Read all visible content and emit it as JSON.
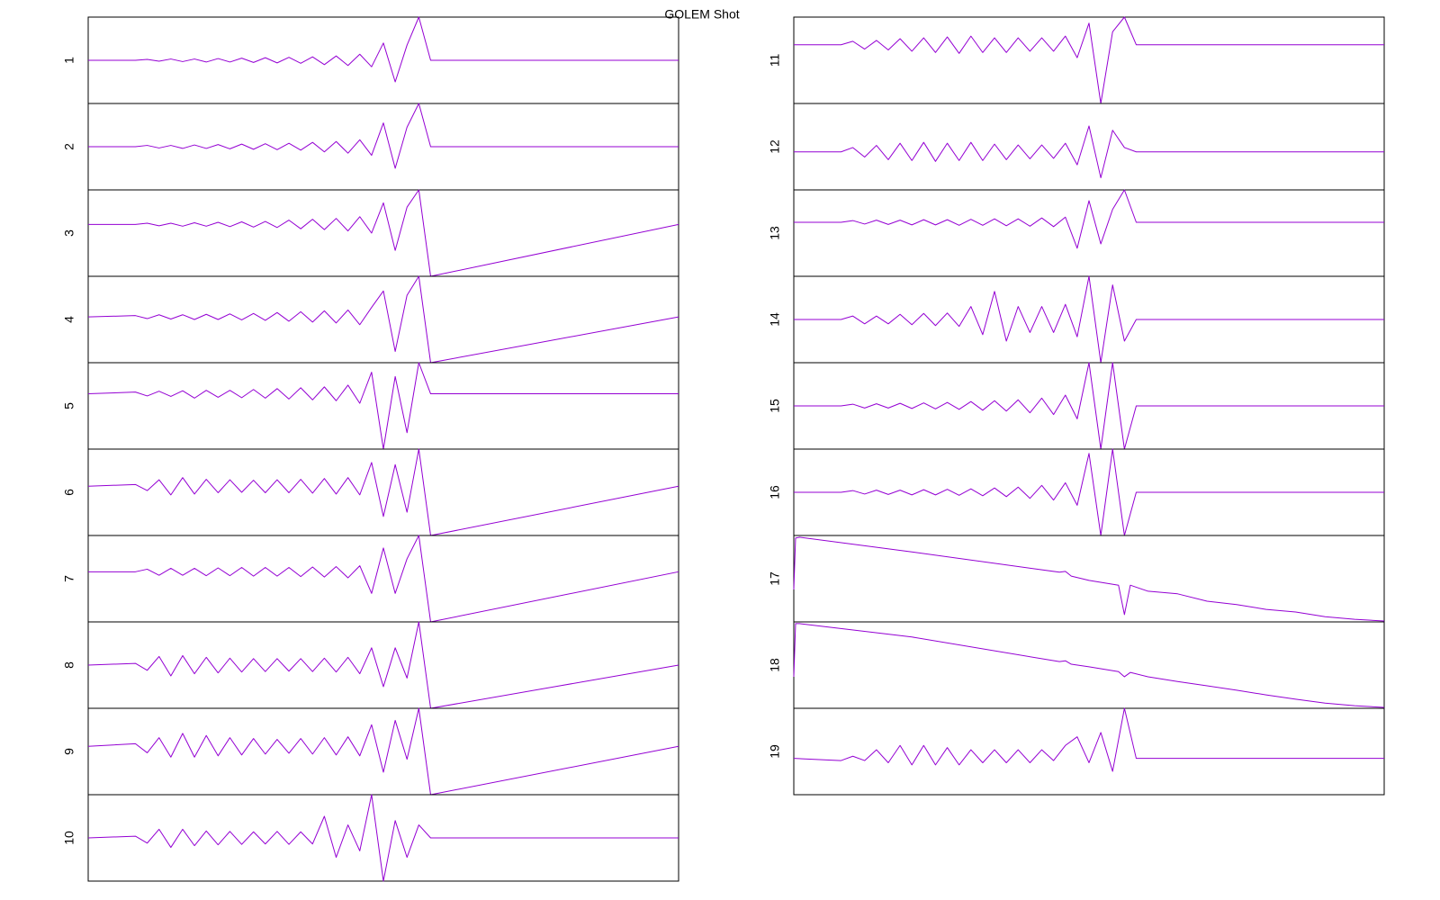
{
  "title": "GOLEM Shot",
  "chart_data": [
    {
      "type": "line",
      "label": "1",
      "color": "#9400d3",
      "xlim": [
        0,
        1
      ],
      "ylim": [
        -1,
        1
      ],
      "x": [
        0,
        0.08,
        0.1,
        0.12,
        0.14,
        0.16,
        0.18,
        0.2,
        0.22,
        0.24,
        0.26,
        0.28,
        0.3,
        0.32,
        0.34,
        0.36,
        0.38,
        0.4,
        0.42,
        0.44,
        0.46,
        0.48,
        0.5,
        0.52,
        0.54,
        0.56,
        0.58,
        1
      ],
      "values": [
        0,
        0,
        0.02,
        -0.02,
        0.03,
        -0.03,
        0.03,
        -0.04,
        0.04,
        -0.04,
        0.05,
        -0.05,
        0.06,
        -0.06,
        0.07,
        -0.07,
        0.08,
        -0.1,
        0.1,
        -0.12,
        0.14,
        -0.15,
        0.4,
        -0.5,
        0.35,
        1,
        0,
        0
      ]
    },
    {
      "type": "line",
      "label": "2",
      "color": "#9400d3",
      "xlim": [
        0,
        1
      ],
      "ylim": [
        -1,
        1
      ],
      "x": [
        0,
        0.08,
        0.1,
        0.12,
        0.14,
        0.16,
        0.18,
        0.2,
        0.22,
        0.24,
        0.26,
        0.28,
        0.3,
        0.32,
        0.34,
        0.36,
        0.38,
        0.4,
        0.42,
        0.44,
        0.46,
        0.48,
        0.5,
        0.52,
        0.54,
        0.56,
        0.58,
        1
      ],
      "values": [
        0,
        0,
        0.03,
        -0.03,
        0.03,
        -0.04,
        0.04,
        -0.04,
        0.05,
        -0.05,
        0.06,
        -0.06,
        0.07,
        -0.07,
        0.08,
        -0.08,
        0.1,
        -0.12,
        0.12,
        -0.15,
        0.16,
        -0.2,
        0.55,
        -0.5,
        0.45,
        1,
        0,
        0
      ]
    },
    {
      "type": "line",
      "label": "3",
      "color": "#9400d3",
      "xlim": [
        0,
        1
      ],
      "ylim": [
        -1.2,
        0.8
      ],
      "x": [
        0,
        0.08,
        0.1,
        0.12,
        0.14,
        0.16,
        0.18,
        0.2,
        0.22,
        0.24,
        0.26,
        0.28,
        0.3,
        0.32,
        0.34,
        0.36,
        0.38,
        0.4,
        0.42,
        0.44,
        0.46,
        0.48,
        0.5,
        0.52,
        0.54,
        0.56,
        0.58,
        1
      ],
      "values": [
        0,
        0,
        0.03,
        -0.03,
        0.03,
        -0.04,
        0.04,
        -0.04,
        0.05,
        -0.05,
        0.06,
        -0.06,
        0.07,
        -0.07,
        0.1,
        -0.1,
        0.12,
        -0.12,
        0.14,
        -0.15,
        0.18,
        -0.2,
        0.5,
        -0.6,
        0.4,
        0.8,
        -1.2,
        0
      ]
    },
    {
      "type": "line",
      "label": "4",
      "color": "#9400d3",
      "xlim": [
        0,
        1
      ],
      "ylim": [
        -1.06,
        0.94
      ],
      "x": [
        0,
        0.08,
        0.1,
        0.12,
        0.14,
        0.16,
        0.18,
        0.2,
        0.22,
        0.24,
        0.26,
        0.28,
        0.3,
        0.32,
        0.34,
        0.36,
        0.38,
        0.4,
        0.42,
        0.44,
        0.46,
        0.48,
        0.5,
        0.52,
        0.54,
        0.56,
        0.58,
        1
      ],
      "values": [
        0,
        0.03,
        -0.04,
        0.05,
        -0.05,
        0.05,
        -0.06,
        0.06,
        -0.06,
        0.07,
        -0.07,
        0.08,
        -0.08,
        0.1,
        -0.1,
        0.12,
        -0.12,
        0.14,
        -0.14,
        0.16,
        -0.18,
        0.22,
        0.6,
        -0.8,
        0.5,
        0.94,
        -1.06,
        0
      ]
    },
    {
      "type": "line",
      "label": "5",
      "color": "#9400d3",
      "xlim": [
        0,
        1
      ],
      "ylim": [
        -1.28,
        0.72
      ],
      "x": [
        0,
        0.08,
        0.1,
        0.12,
        0.14,
        0.16,
        0.18,
        0.2,
        0.22,
        0.24,
        0.26,
        0.28,
        0.3,
        0.32,
        0.34,
        0.36,
        0.38,
        0.4,
        0.42,
        0.44,
        0.46,
        0.48,
        0.5,
        0.52,
        0.54,
        0.56,
        0.58,
        1
      ],
      "values": [
        0,
        0.04,
        -0.05,
        0.06,
        -0.06,
        0.07,
        -0.1,
        0.08,
        -0.08,
        0.08,
        -0.09,
        0.1,
        -0.1,
        0.12,
        -0.12,
        0.14,
        -0.14,
        0.16,
        -0.16,
        0.2,
        -0.22,
        0.5,
        -1.28,
        0.4,
        -0.9,
        0.72,
        0,
        0
      ]
    },
    {
      "type": "line",
      "label": "6",
      "color": "#9400d3",
      "xlim": [
        0,
        1
      ],
      "ylim": [
        -1.14,
        0.86
      ],
      "x": [
        0,
        0.08,
        0.1,
        0.12,
        0.14,
        0.16,
        0.18,
        0.2,
        0.22,
        0.24,
        0.26,
        0.28,
        0.3,
        0.32,
        0.34,
        0.36,
        0.38,
        0.4,
        0.42,
        0.44,
        0.46,
        0.48,
        0.5,
        0.52,
        0.54,
        0.56,
        0.58,
        1
      ],
      "values": [
        0,
        0.04,
        -0.1,
        0.15,
        -0.2,
        0.2,
        -0.18,
        0.16,
        -0.15,
        0.15,
        -0.14,
        0.14,
        -0.15,
        0.15,
        -0.15,
        0.16,
        -0.16,
        0.18,
        -0.18,
        0.2,
        -0.2,
        0.55,
        -0.7,
        0.5,
        -0.6,
        0.86,
        -1.14,
        0
      ]
    },
    {
      "type": "line",
      "label": "7",
      "color": "#9400d3",
      "xlim": [
        0,
        1
      ],
      "ylim": [
        -1.16,
        0.84
      ],
      "x": [
        0,
        0.08,
        0.1,
        0.12,
        0.14,
        0.16,
        0.18,
        0.2,
        0.22,
        0.24,
        0.26,
        0.28,
        0.3,
        0.32,
        0.34,
        0.36,
        0.38,
        0.4,
        0.42,
        0.44,
        0.46,
        0.48,
        0.5,
        0.52,
        0.54,
        0.56,
        0.58,
        1
      ],
      "values": [
        0,
        0,
        0.06,
        -0.08,
        0.08,
        -0.08,
        0.08,
        -0.09,
        0.09,
        -0.09,
        0.1,
        -0.1,
        0.1,
        -0.1,
        0.1,
        -0.11,
        0.11,
        -0.12,
        0.12,
        -0.14,
        0.14,
        -0.5,
        0.55,
        -0.5,
        0.3,
        0.84,
        -1.16,
        0
      ]
    },
    {
      "type": "line",
      "label": "8",
      "color": "#9400d3",
      "xlim": [
        0,
        1
      ],
      "ylim": [
        -1,
        1
      ],
      "x": [
        0,
        0.08,
        0.1,
        0.12,
        0.14,
        0.16,
        0.18,
        0.2,
        0.22,
        0.24,
        0.26,
        0.28,
        0.3,
        0.32,
        0.34,
        0.36,
        0.38,
        0.4,
        0.42,
        0.44,
        0.46,
        0.48,
        0.5,
        0.52,
        0.54,
        0.56,
        0.58,
        1
      ],
      "values": [
        0,
        0.04,
        -0.12,
        0.2,
        -0.25,
        0.22,
        -0.2,
        0.18,
        -0.18,
        0.16,
        -0.16,
        0.15,
        -0.15,
        0.15,
        -0.14,
        0.15,
        -0.15,
        0.16,
        -0.16,
        0.18,
        -0.2,
        0.4,
        -0.5,
        0.4,
        -0.3,
        1,
        -1,
        0
      ]
    },
    {
      "type": "line",
      "label": "9",
      "color": "#9400d3",
      "xlim": [
        0,
        1
      ],
      "ylim": [
        -1.12,
        0.88
      ],
      "x": [
        0,
        0.08,
        0.1,
        0.12,
        0.14,
        0.16,
        0.18,
        0.2,
        0.22,
        0.24,
        0.26,
        0.28,
        0.3,
        0.32,
        0.34,
        0.36,
        0.38,
        0.4,
        0.42,
        0.44,
        0.46,
        0.48,
        0.5,
        0.52,
        0.54,
        0.56,
        0.58,
        1
      ],
      "values": [
        0,
        0.06,
        -0.15,
        0.2,
        -0.25,
        0.3,
        -0.25,
        0.25,
        -0.22,
        0.2,
        -0.2,
        0.18,
        -0.18,
        0.16,
        -0.16,
        0.18,
        -0.18,
        0.2,
        -0.2,
        0.22,
        -0.22,
        0.5,
        -0.6,
        0.6,
        -0.3,
        0.88,
        -1.12,
        0
      ]
    },
    {
      "type": "line",
      "label": "10",
      "color": "#9400d3",
      "xlim": [
        0,
        1
      ],
      "ylim": [
        -1,
        1
      ],
      "x": [
        0,
        0.08,
        0.1,
        0.12,
        0.14,
        0.16,
        0.18,
        0.2,
        0.22,
        0.24,
        0.26,
        0.28,
        0.3,
        0.32,
        0.34,
        0.36,
        0.38,
        0.4,
        0.42,
        0.44,
        0.46,
        0.48,
        0.5,
        0.52,
        0.54,
        0.56,
        0.58,
        1
      ],
      "values": [
        0,
        0.04,
        -0.12,
        0.2,
        -0.22,
        0.2,
        -0.18,
        0.16,
        -0.16,
        0.15,
        -0.15,
        0.14,
        -0.14,
        0.15,
        -0.15,
        0.14,
        -0.14,
        0.5,
        -0.45,
        0.3,
        -0.3,
        1,
        -1,
        0.4,
        -0.45,
        0.3,
        0,
        0
      ]
    },
    {
      "type": "line",
      "label": "11",
      "color": "#9400d3",
      "xlim": [
        0,
        1
      ],
      "ylim": [
        -1.36,
        0.64
      ],
      "x": [
        0,
        0.08,
        0.1,
        0.12,
        0.14,
        0.16,
        0.18,
        0.2,
        0.22,
        0.24,
        0.26,
        0.28,
        0.3,
        0.32,
        0.34,
        0.36,
        0.38,
        0.4,
        0.42,
        0.44,
        0.46,
        0.48,
        0.5,
        0.52,
        0.54,
        0.56,
        0.58,
        1
      ],
      "values": [
        0,
        0,
        0.08,
        -0.1,
        0.1,
        -0.12,
        0.14,
        -0.15,
        0.16,
        -0.18,
        0.18,
        -0.2,
        0.2,
        -0.18,
        0.16,
        -0.18,
        0.16,
        -0.15,
        0.16,
        -0.15,
        0.2,
        -0.3,
        0.5,
        -1.36,
        0.3,
        0.64,
        0,
        0
      ]
    },
    {
      "type": "line",
      "label": "12",
      "color": "#9400d3",
      "xlim": [
        0,
        1
      ],
      "ylim": [
        -0.88,
        1.12
      ],
      "x": [
        0,
        0.08,
        0.1,
        0.12,
        0.14,
        0.16,
        0.18,
        0.2,
        0.22,
        0.24,
        0.26,
        0.28,
        0.3,
        0.32,
        0.34,
        0.36,
        0.38,
        0.4,
        0.42,
        0.44,
        0.46,
        0.48,
        0.5,
        0.52,
        0.54,
        0.56,
        0.58,
        1
      ],
      "values": [
        0,
        0,
        0.1,
        -0.12,
        0.15,
        -0.18,
        0.2,
        -0.2,
        0.22,
        -0.22,
        0.2,
        -0.2,
        0.22,
        -0.2,
        0.18,
        -0.18,
        0.16,
        -0.16,
        0.16,
        -0.15,
        0.2,
        -0.3,
        0.6,
        -0.6,
        0.5,
        0.1,
        0,
        0
      ]
    },
    {
      "type": "line",
      "label": "13",
      "color": "#9400d3",
      "xlim": [
        0,
        1
      ],
      "ylim": [
        -1.25,
        0.75
      ],
      "x": [
        0,
        0.08,
        0.1,
        0.12,
        0.14,
        0.16,
        0.18,
        0.2,
        0.22,
        0.24,
        0.26,
        0.28,
        0.3,
        0.32,
        0.34,
        0.36,
        0.38,
        0.4,
        0.42,
        0.44,
        0.46,
        0.48,
        0.5,
        0.52,
        0.54,
        0.56,
        0.58,
        1
      ],
      "values": [
        0,
        0,
        0.04,
        -0.04,
        0.05,
        -0.05,
        0.05,
        -0.06,
        0.06,
        -0.06,
        0.06,
        -0.07,
        0.07,
        -0.07,
        0.08,
        -0.08,
        0.08,
        -0.09,
        0.1,
        -0.1,
        0.12,
        -0.6,
        0.5,
        -0.5,
        0.3,
        0.75,
        0,
        0
      ]
    },
    {
      "type": "line",
      "label": "14",
      "color": "#9400d3",
      "xlim": [
        0,
        1
      ],
      "ylim": [
        -1,
        1
      ],
      "x": [
        0,
        0.08,
        0.1,
        0.12,
        0.14,
        0.16,
        0.18,
        0.2,
        0.22,
        0.24,
        0.26,
        0.28,
        0.3,
        0.32,
        0.34,
        0.36,
        0.38,
        0.4,
        0.42,
        0.44,
        0.46,
        0.48,
        0.5,
        0.52,
        0.54,
        0.56,
        0.58,
        1
      ],
      "values": [
        0,
        0,
        0.08,
        -0.1,
        0.08,
        -0.1,
        0.12,
        -0.12,
        0.14,
        -0.14,
        0.15,
        -0.16,
        0.3,
        -0.35,
        0.65,
        -0.5,
        0.3,
        -0.3,
        0.3,
        -0.3,
        0.35,
        -0.4,
        1,
        -1,
        0.8,
        -0.5,
        0,
        0
      ]
    },
    {
      "type": "line",
      "label": "15",
      "color": "#9400d3",
      "xlim": [
        0,
        1
      ],
      "ylim": [
        -1,
        1
      ],
      "x": [
        0,
        0.08,
        0.1,
        0.12,
        0.14,
        0.16,
        0.18,
        0.2,
        0.22,
        0.24,
        0.26,
        0.28,
        0.3,
        0.32,
        0.34,
        0.36,
        0.38,
        0.4,
        0.42,
        0.44,
        0.46,
        0.48,
        0.5,
        0.52,
        0.54,
        0.56,
        0.58,
        1
      ],
      "values": [
        0,
        0,
        0.04,
        -0.05,
        0.05,
        -0.05,
        0.06,
        -0.06,
        0.07,
        -0.07,
        0.08,
        -0.08,
        0.1,
        -0.1,
        0.12,
        -0.12,
        0.14,
        -0.16,
        0.18,
        -0.2,
        0.25,
        -0.3,
        1,
        -1,
        1,
        -1,
        0,
        0
      ]
    },
    {
      "type": "line",
      "label": "16",
      "color": "#9400d3",
      "xlim": [
        0,
        1
      ],
      "ylim": [
        -1,
        1
      ],
      "x": [
        0,
        0.08,
        0.1,
        0.12,
        0.14,
        0.16,
        0.18,
        0.2,
        0.22,
        0.24,
        0.26,
        0.28,
        0.3,
        0.32,
        0.34,
        0.36,
        0.38,
        0.4,
        0.42,
        0.44,
        0.46,
        0.48,
        0.5,
        0.52,
        0.54,
        0.56,
        0.58,
        1
      ],
      "values": [
        0,
        0,
        0.04,
        -0.04,
        0.05,
        -0.05,
        0.05,
        -0.06,
        0.06,
        -0.06,
        0.07,
        -0.07,
        0.08,
        -0.08,
        0.1,
        -0.1,
        0.12,
        -0.14,
        0.16,
        -0.18,
        0.22,
        -0.3,
        0.9,
        -1,
        1,
        -1,
        0,
        0
      ]
    },
    {
      "type": "line",
      "label": "17",
      "color": "#9400d3",
      "xlim": [
        0,
        1
      ],
      "ylim": [
        -1,
        1
      ],
      "x": [
        0,
        0.003,
        0.01,
        0.2,
        0.45,
        0.46,
        0.47,
        0.5,
        0.55,
        0.56,
        0.57,
        0.6,
        0.65,
        0.7,
        0.75,
        0.8,
        0.85,
        0.9,
        0.95,
        1
      ],
      "values": [
        -0.25,
        0.94,
        0.96,
        0.62,
        0.15,
        0.17,
        0.06,
        -0.04,
        -0.15,
        -0.83,
        -0.15,
        -0.29,
        -0.35,
        -0.52,
        -0.6,
        -0.71,
        -0.77,
        -0.88,
        -0.94,
        -0.98
      ]
    },
    {
      "type": "line",
      "label": "18",
      "color": "#9400d3",
      "xlim": [
        0,
        1
      ],
      "ylim": [
        -1,
        1
      ],
      "x": [
        0,
        0.003,
        0.01,
        0.2,
        0.45,
        0.46,
        0.47,
        0.5,
        0.55,
        0.56,
        0.57,
        0.6,
        0.65,
        0.7,
        0.75,
        0.8,
        0.85,
        0.9,
        0.95,
        1
      ],
      "values": [
        -0.27,
        0.96,
        0.96,
        0.65,
        0.08,
        0.1,
        0.02,
        -0.04,
        -0.15,
        -0.27,
        -0.17,
        -0.27,
        -0.38,
        -0.48,
        -0.58,
        -0.69,
        -0.79,
        -0.88,
        -0.94,
        -0.98
      ]
    },
    {
      "type": "line",
      "label": "19",
      "color": "#9400d3",
      "xlim": [
        0,
        1
      ],
      "ylim": [
        -0.84,
        1.16
      ],
      "x": [
        0,
        0.08,
        0.1,
        0.12,
        0.14,
        0.16,
        0.18,
        0.2,
        0.22,
        0.24,
        0.26,
        0.28,
        0.3,
        0.32,
        0.34,
        0.36,
        0.38,
        0.4,
        0.42,
        0.44,
        0.46,
        0.48,
        0.5,
        0.52,
        0.54,
        0.56,
        0.58,
        1
      ],
      "values": [
        0,
        -0.05,
        0.05,
        -0.05,
        0.2,
        -0.1,
        0.3,
        -0.15,
        0.3,
        -0.15,
        0.25,
        -0.15,
        0.2,
        -0.1,
        0.2,
        -0.1,
        0.2,
        -0.1,
        0.2,
        -0.05,
        0.3,
        0.5,
        -0.1,
        0.6,
        -0.3,
        1.16,
        0,
        0
      ]
    }
  ]
}
